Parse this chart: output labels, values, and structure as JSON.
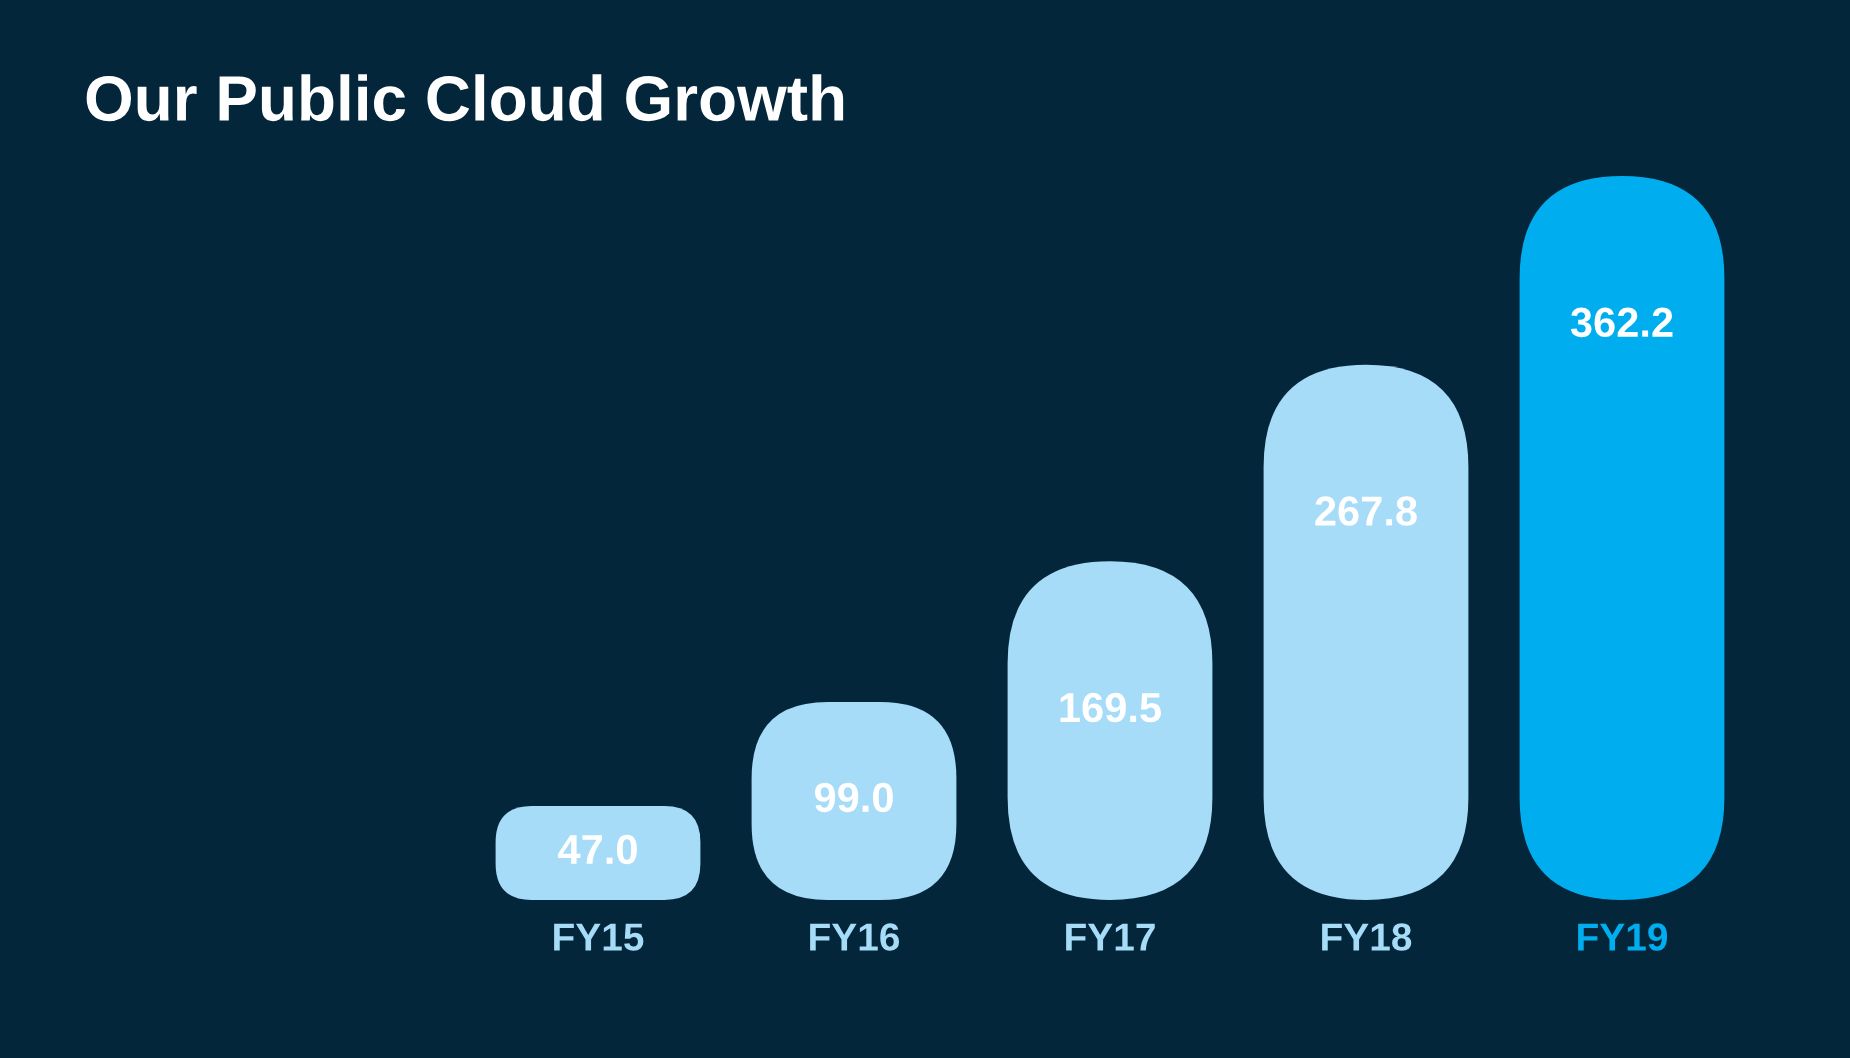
{
  "chart_data": {
    "type": "bar",
    "title": "Our Public Cloud Growth",
    "categories": [
      "FY15",
      "FY16",
      "FY17",
      "FY18",
      "FY19"
    ],
    "values": [
      47.0,
      99.0,
      169.5,
      267.8,
      362.2
    ],
    "colors": [
      "#a6dcf8",
      "#a6dcf8",
      "#a6dcf8",
      "#a6dcf8",
      "#00aeef"
    ],
    "value_labels": [
      "47.0",
      "99.0",
      "169.5",
      "267.8",
      "362.2"
    ]
  }
}
